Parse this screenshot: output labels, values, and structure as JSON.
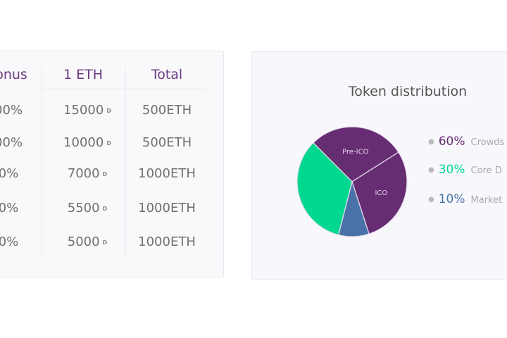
{
  "table": {
    "headers": [
      "onus",
      "1 ETH",
      "Total"
    ],
    "rows": [
      {
        "bonus": "00%",
        "rate": "15000",
        "total": "500ETH"
      },
      {
        "bonus": "00%",
        "rate": "10000",
        "total": "500ETH"
      },
      {
        "bonus": "0%",
        "rate": "7000",
        "total": "1000ETH"
      },
      {
        "bonus": "0%",
        "rate": "5500",
        "total": "1000ETH"
      },
      {
        "bonus": "0%",
        "rate": "5000",
        "total": "1000ETH"
      }
    ],
    "token_symbol": "D"
  },
  "distribution": {
    "title": "Token distribution",
    "slices": [
      {
        "label": "Pre-ICO",
        "fraction": 0.285,
        "color": "#672d73"
      },
      {
        "label": "ICO",
        "fraction": 0.29,
        "color": "#672d73"
      },
      {
        "label": "",
        "fraction": 0.09,
        "color": "#4a72a8"
      },
      {
        "label": "",
        "fraction": 0.335,
        "color": "#00d890"
      }
    ],
    "legend": [
      {
        "percent": "60%",
        "label": "Crowds",
        "color": "#672d73"
      },
      {
        "percent": "30%",
        "label": "Core D",
        "color": "#00d890"
      },
      {
        "percent": "10%",
        "label": "Market",
        "color": "#4a72a8"
      }
    ]
  }
}
